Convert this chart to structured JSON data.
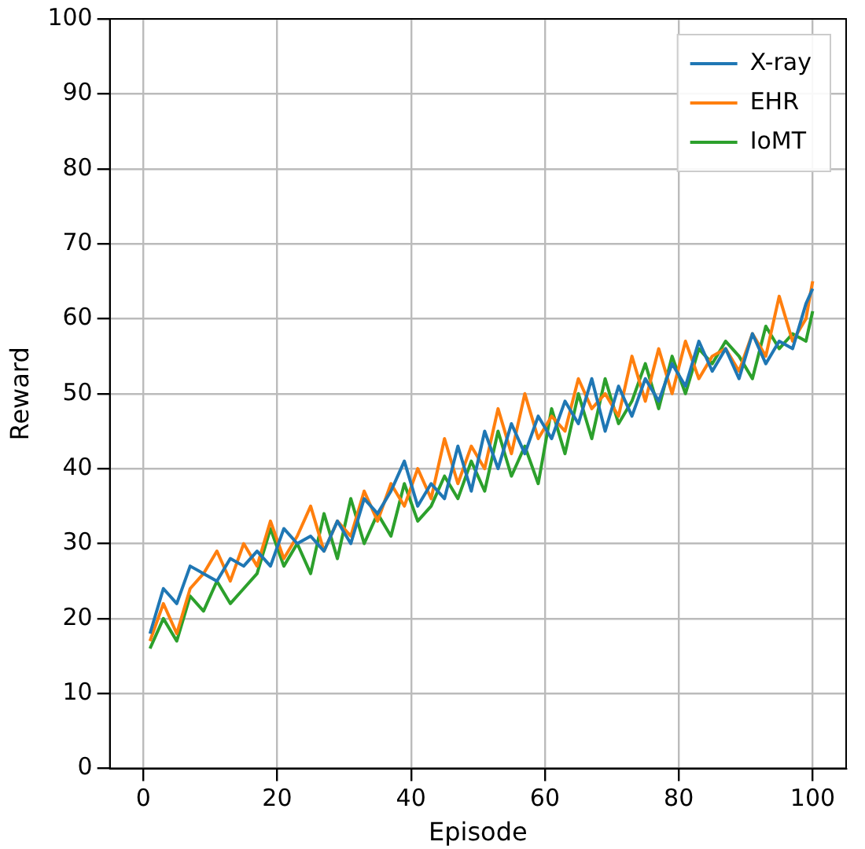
{
  "chart_data": {
    "type": "line",
    "xlabel": "Episode",
    "ylabel": "Reward",
    "x": [
      1,
      3,
      5,
      7,
      9,
      11,
      13,
      15,
      17,
      19,
      21,
      23,
      25,
      27,
      29,
      31,
      33,
      35,
      37,
      39,
      41,
      43,
      45,
      47,
      49,
      51,
      53,
      55,
      57,
      59,
      61,
      63,
      65,
      67,
      69,
      71,
      73,
      75,
      77,
      79,
      81,
      83,
      85,
      87,
      89,
      91,
      93,
      95,
      97,
      99,
      100
    ],
    "series": [
      {
        "name": "X-ray",
        "color": "#1f77b4",
        "values": [
          18,
          24,
          22,
          27,
          26,
          25,
          28,
          27,
          29,
          27,
          32,
          30,
          31,
          29,
          33,
          30,
          36,
          34,
          37,
          41,
          35,
          38,
          36,
          43,
          37,
          45,
          40,
          46,
          42,
          47,
          44,
          49,
          46,
          52,
          45,
          51,
          47,
          52,
          49,
          54,
          51,
          57,
          53,
          56,
          52,
          58,
          54,
          57,
          56,
          62,
          64
        ]
      },
      {
        "name": "EHR",
        "color": "#ff7f0e",
        "values": [
          17,
          22,
          18,
          24,
          26,
          29,
          25,
          30,
          27,
          33,
          28,
          31,
          35,
          29,
          33,
          31,
          37,
          33,
          38,
          35,
          40,
          36,
          44,
          38,
          43,
          40,
          48,
          42,
          50,
          44,
          47,
          45,
          52,
          48,
          50,
          47,
          55,
          49,
          56,
          50,
          57,
          52,
          55,
          56,
          53,
          58,
          55,
          63,
          57,
          60,
          65
        ]
      },
      {
        "name": "IoMT",
        "color": "#2ca02c",
        "values": [
          16,
          20,
          17,
          23,
          21,
          25,
          22,
          24,
          26,
          32,
          27,
          30,
          26,
          34,
          28,
          36,
          30,
          34,
          31,
          38,
          33,
          35,
          39,
          36,
          41,
          37,
          45,
          39,
          43,
          38,
          48,
          42,
          50,
          44,
          52,
          46,
          49,
          54,
          48,
          55,
          50,
          56,
          54,
          57,
          55,
          52,
          59,
          56,
          58,
          57,
          61
        ]
      }
    ],
    "xlim": [
      -5,
      105
    ],
    "xticks": [
      0,
      20,
      40,
      60,
      80,
      100
    ],
    "ylim": [
      0,
      100
    ],
    "yticks": [
      0,
      10,
      20,
      30,
      40,
      50,
      60,
      70,
      80,
      90,
      100
    ],
    "grid": true,
    "legend": "top right",
    "marker": "none",
    "line_style": "solid"
  }
}
